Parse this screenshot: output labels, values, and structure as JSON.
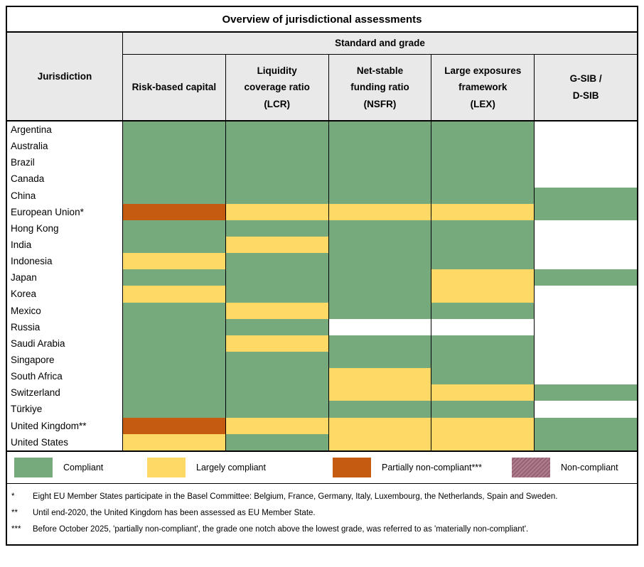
{
  "title": "Overview of jurisdictional assessments",
  "header": {
    "jurisdiction_label": "Jurisdiction",
    "group_label": "Standard and grade",
    "column_labels": [
      "Risk-based capital",
      "Liquidity\ncoverage ratio\n(LCR)",
      "Net-stable\nfunding ratio\n(NSFR)",
      "Large exposures\nframework\n(LEX)",
      "G-SIB /\nD-SIB"
    ]
  },
  "chart_data": {
    "type": "heatmap",
    "title": "Overview of jurisdictional assessments",
    "columns": [
      "Risk-based capital",
      "Liquidity coverage ratio (LCR)",
      "Net-stable funding ratio (NSFR)",
      "Large exposures framework (LEX)",
      "G-SIB / D-SIB"
    ],
    "grade_codes": {
      "C": "Compliant",
      "LC": "Largely compliant",
      "PNC": "Partially non-compliant",
      "NC": "Non-compliant",
      "-": ""
    },
    "rows": [
      {
        "jurisdiction": "Argentina",
        "grades": [
          "C",
          "C",
          "C",
          "C",
          "-"
        ]
      },
      {
        "jurisdiction": "Australia",
        "grades": [
          "C",
          "C",
          "C",
          "C",
          "-"
        ]
      },
      {
        "jurisdiction": "Brazil",
        "grades": [
          "C",
          "C",
          "C",
          "C",
          "-"
        ]
      },
      {
        "jurisdiction": "Canada",
        "grades": [
          "C",
          "C",
          "C",
          "C",
          "-"
        ]
      },
      {
        "jurisdiction": "China",
        "grades": [
          "C",
          "C",
          "C",
          "C",
          "C"
        ]
      },
      {
        "jurisdiction": "European Union*",
        "grades": [
          "PNC",
          "LC",
          "LC",
          "LC",
          "C"
        ]
      },
      {
        "jurisdiction": "Hong Kong",
        "grades": [
          "C",
          "C",
          "C",
          "C",
          "-"
        ]
      },
      {
        "jurisdiction": "India",
        "grades": [
          "C",
          "LC",
          "C",
          "C",
          "-"
        ]
      },
      {
        "jurisdiction": "Indonesia",
        "grades": [
          "LC",
          "C",
          "C",
          "C",
          "-"
        ]
      },
      {
        "jurisdiction": "Japan",
        "grades": [
          "C",
          "C",
          "C",
          "LC",
          "C"
        ]
      },
      {
        "jurisdiction": "Korea",
        "grades": [
          "LC",
          "C",
          "C",
          "LC",
          "-"
        ]
      },
      {
        "jurisdiction": "Mexico",
        "grades": [
          "C",
          "LC",
          "C",
          "C",
          "-"
        ]
      },
      {
        "jurisdiction": "Russia",
        "grades": [
          "C",
          "C",
          "-",
          "-",
          "-"
        ]
      },
      {
        "jurisdiction": "Saudi Arabia",
        "grades": [
          "C",
          "LC",
          "C",
          "C",
          "-"
        ]
      },
      {
        "jurisdiction": "Singapore",
        "grades": [
          "C",
          "C",
          "C",
          "C",
          "-"
        ]
      },
      {
        "jurisdiction": "South Africa",
        "grades": [
          "C",
          "C",
          "LC",
          "C",
          "-"
        ]
      },
      {
        "jurisdiction": "Switzerland",
        "grades": [
          "C",
          "C",
          "LC",
          "LC",
          "C"
        ]
      },
      {
        "jurisdiction": "Türkiye",
        "grades": [
          "C",
          "C",
          "C",
          "C",
          "-"
        ]
      },
      {
        "jurisdiction": "United Kingdom**",
        "grades": [
          "PNC",
          "LC",
          "LC",
          "LC",
          "C"
        ]
      },
      {
        "jurisdiction": "United States",
        "grades": [
          "LC",
          "C",
          "LC",
          "LC",
          "C"
        ]
      }
    ]
  },
  "colors": {
    "C": "#76a97c",
    "LC": "#ffd966",
    "PNC": "#c55a11",
    "NC": "#a36b7e",
    "-": "#ffffff",
    "header_bg": "#e9e9e9",
    "border": "#000000"
  },
  "legend": [
    {
      "code": "C",
      "label": "Compliant"
    },
    {
      "code": "LC",
      "label": "Largely compliant"
    },
    {
      "code": "PNC",
      "label": "Partially non-compliant***"
    },
    {
      "code": "NC",
      "label": "Non-compliant"
    }
  ],
  "footnotes": [
    {
      "marker": "*",
      "text": "Eight EU Member States participate in the Basel Committee: Belgium, France, Germany, Italy, Luxembourg, the Netherlands, Spain and Sweden."
    },
    {
      "marker": "**",
      "text": "Until end-2020, the United Kingdom has been assessed as EU Member State."
    },
    {
      "marker": "***",
      "text": "Before October 2025, 'partially non-compliant', the grade one notch above the lowest grade, was referred to as 'materially non-compliant'."
    }
  ]
}
